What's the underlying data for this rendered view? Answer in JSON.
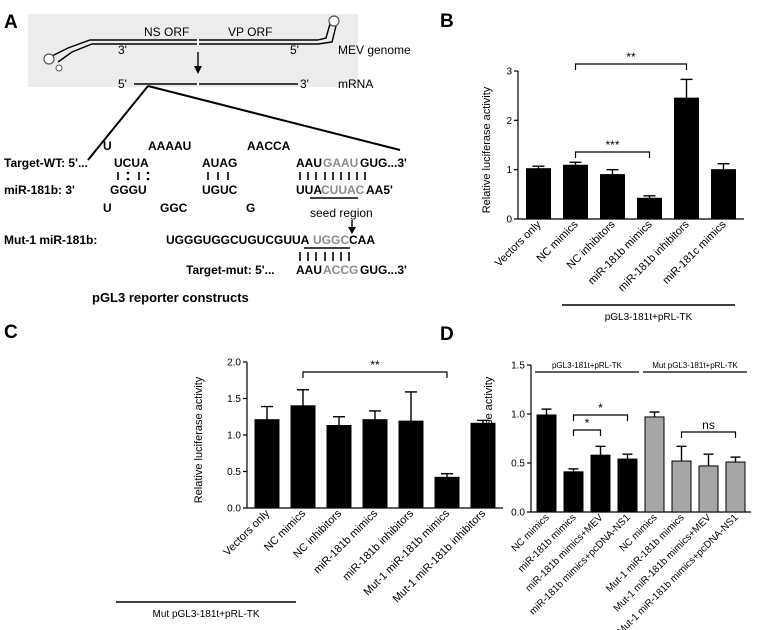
{
  "panel_labels": {
    "a": "A",
    "b": "B",
    "c": "C",
    "d": "D"
  },
  "panel_a": {
    "genome_label": "MEV genome",
    "mrna_label": "mRNA",
    "orf1": "NS ORF",
    "orf2": "VP ORF",
    "end3_top": "3'",
    "end5_top": "5'",
    "end5_mrna": "5'",
    "end3_mrna": "3'",
    "target_wt_name": "Target-WT: 5'...",
    "target_wt_top": [
      "U",
      "AAAAU",
      "AACCA"
    ],
    "target_wt_seq": [
      "UCUA",
      "AUAG",
      "AAU",
      "GAAU",
      "GUG...3'"
    ],
    "mir_name": "miR-181b:  3'",
    "mir_seq": [
      "GGGU",
      "UGUC",
      "UUA",
      "CUUAC",
      "AA5'"
    ],
    "mir_bottom": [
      "U",
      "GGC",
      "G"
    ],
    "seed_label": "seed region",
    "mut_name": "Mut-1 miR-181b:",
    "mut_seq": [
      "UGGGUGGCUGUCGUUA",
      "UGGC",
      "CAA"
    ],
    "target_mut_name": "Target-mut: 5'...",
    "target_mut_seq": [
      "AAU",
      "ACCG",
      "GUG...3'"
    ],
    "caption": "pGL3 reporter constructs"
  },
  "chart_data": [
    {
      "id": "B",
      "type": "bar",
      "ylabel": "Relative luciferase activity",
      "ylim": [
        0,
        3
      ],
      "yticks": [
        "0",
        "1",
        "2",
        "3"
      ],
      "categories": [
        "Vectors only",
        "NC mimics",
        "NC inhibitors",
        "miR-181b mimics",
        "miR-181b inhibitors",
        "miR-181c mimics"
      ],
      "values": [
        1.02,
        1.09,
        0.9,
        0.42,
        2.45,
        1.0
      ],
      "errors": [
        0.05,
        0.06,
        0.1,
        0.05,
        0.38,
        0.12
      ],
      "group_label": "pGL3-181t+pRL-TK",
      "significance": [
        {
          "from": 1,
          "to": 3,
          "label": "***"
        },
        {
          "from": 1,
          "to": 4,
          "label": "**"
        }
      ]
    },
    {
      "id": "C",
      "type": "bar",
      "ylabel": "Relative luciferase activity",
      "ylim": [
        0,
        2.0
      ],
      "yticks": [
        "0.0",
        "0.5",
        "1.0",
        "1.5",
        "2.0"
      ],
      "categories": [
        "Vectors only",
        "NC mimics",
        "NC inhibitors",
        "miR-181b mimics",
        "miR-181b inhibitors",
        "Mut-1 miR-181b mimics",
        "Mut-1 miR-181b inhibitors"
      ],
      "values": [
        1.21,
        1.4,
        1.13,
        1.21,
        1.19,
        0.42,
        1.16
      ],
      "errors": [
        0.18,
        0.22,
        0.12,
        0.12,
        0.4,
        0.05,
        0.04
      ],
      "group_label": "Mut pGL3-181t+pRL-TK",
      "significance": [
        {
          "from": 1,
          "to": 5,
          "label": "**"
        }
      ]
    },
    {
      "id": "D",
      "type": "bar",
      "ylabel": "Relative luciferase activity",
      "ylim": [
        0,
        1.5
      ],
      "yticks": [
        "0.0",
        "0.5",
        "1.0",
        "1.5"
      ],
      "categories": [
        "NC mimics",
        "miR-181b mimics",
        "miR-181b mimics+MEV",
        "miR-181b mimics+pcDNA-NS1",
        "NC mimics",
        "Mut-1 miR-181b mimics",
        "Mut-1 miR-181b mimics+MEV",
        "Mut-1 miR-181b mimics+pcDNA-NS1"
      ],
      "values": [
        0.99,
        0.41,
        0.58,
        0.54,
        0.97,
        0.52,
        0.47,
        0.51
      ],
      "errors": [
        0.06,
        0.03,
        0.09,
        0.05,
        0.05,
        0.15,
        0.12,
        0.05
      ],
      "colors": [
        "#000000",
        "#000000",
        "#000000",
        "#000000",
        "#a6a6a6",
        "#a6a6a6",
        "#a6a6a6",
        "#a6a6a6"
      ],
      "groups": [
        {
          "label": "pGL3-181t+pRL-TK",
          "from": 0,
          "to": 3
        },
        {
          "label": "Mut pGL3-181t+pRL-TK",
          "from": 4,
          "to": 7
        }
      ],
      "significance": [
        {
          "from": 1,
          "to": 2,
          "label": "*"
        },
        {
          "from": 1,
          "to": 3,
          "label": "*"
        },
        {
          "from": 5,
          "to": 7,
          "label": "ns"
        }
      ]
    }
  ]
}
